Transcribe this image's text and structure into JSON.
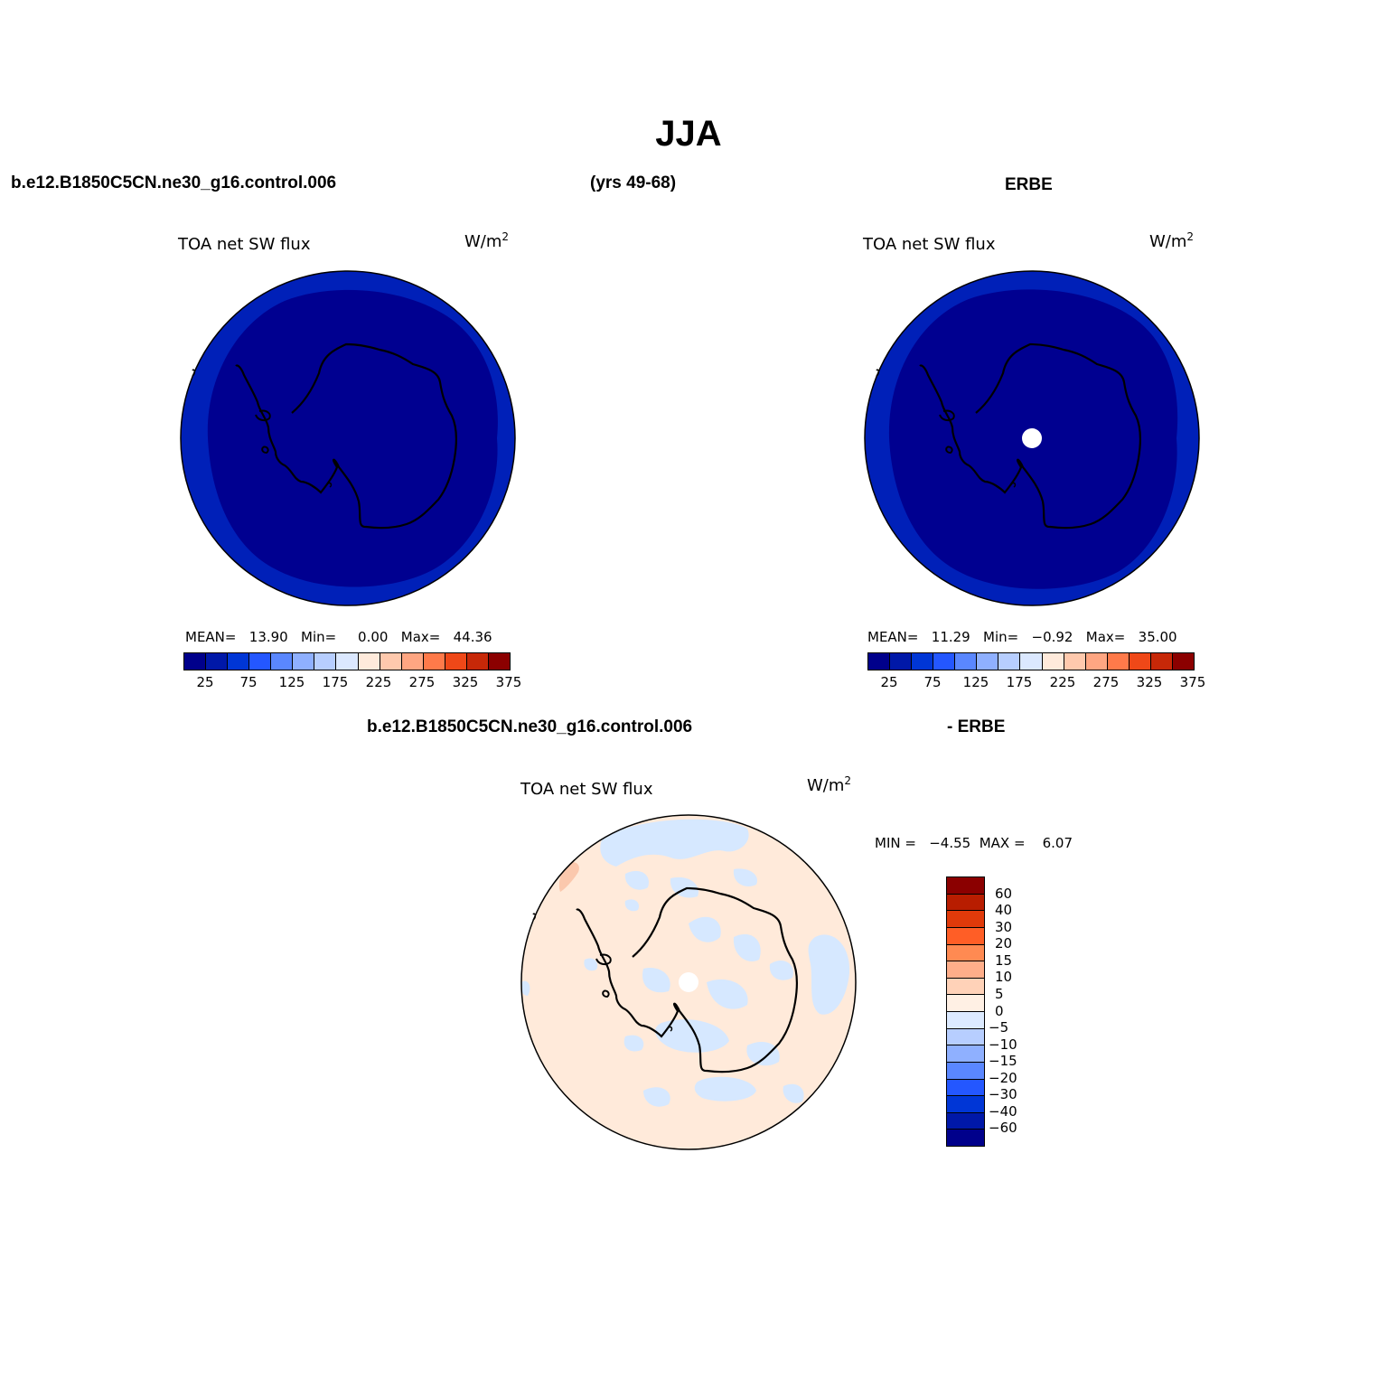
{
  "title": "JJA",
  "header": {
    "case_name": "b.e12.B1850C5CN.ne30_g16.control.006",
    "years": "(yrs 49-68)",
    "obs_name": "ERBE",
    "diff_case": "b.e12.B1850C5CN.ne30_g16.control.006",
    "diff_obs": "- ERBE"
  },
  "panels": {
    "model": {
      "variable": "TOA net SW flux",
      "units": "W/m",
      "units_sup": "2",
      "stats": "MEAN=   13.90   Min=     0.00   Max=   44.36"
    },
    "obs": {
      "variable": "TOA net SW flux",
      "units": "W/m",
      "units_sup": "2",
      "stats": "MEAN=   11.29   Min=   −0.92   Max=   35.00"
    },
    "diff": {
      "variable": "TOA net SW flux",
      "units": "W/m",
      "units_sup": "2",
      "stats": "MIN =   −4.55  MAX =    6.07"
    }
  },
  "colorbar_main": {
    "colors": [
      "#00008b",
      "#0018a8",
      "#0036d6",
      "#2457ff",
      "#5a87ff",
      "#8fb0ff",
      "#b7ceff",
      "#dbe8ff",
      "#ffeadb",
      "#ffc9ad",
      "#ffa682",
      "#ff7a4a",
      "#ef4818",
      "#c72808",
      "#8b0000"
    ],
    "labels": [
      "25",
      "75",
      "125",
      "175",
      "225",
      "275",
      "325",
      "375"
    ]
  },
  "colorbar_diff": {
    "colors_top_to_bottom": [
      "#8b0000",
      "#b81d00",
      "#e03a0a",
      "#ff5e26",
      "#ff8a52",
      "#ffae8a",
      "#ffd2b8",
      "#fff0e4",
      "#dceaff",
      "#b7ceff",
      "#8fb0ff",
      "#5a87ff",
      "#2457ff",
      "#0036d6",
      "#0018a8",
      "#00008b"
    ],
    "labels": [
      "60",
      "40",
      "30",
      "20",
      "15",
      "10",
      "5",
      "0",
      "−5",
      "−10",
      "−15",
      "−20",
      "−30",
      "−40",
      "−60"
    ]
  },
  "map_colors": {
    "outer_ring": "#0020b8",
    "inner_field": "#000090",
    "diff_base": "#ffeada",
    "diff_negative": "#d6e8ff",
    "diff_positive": "#fbc8ad",
    "missing": "#ffffff"
  }
}
